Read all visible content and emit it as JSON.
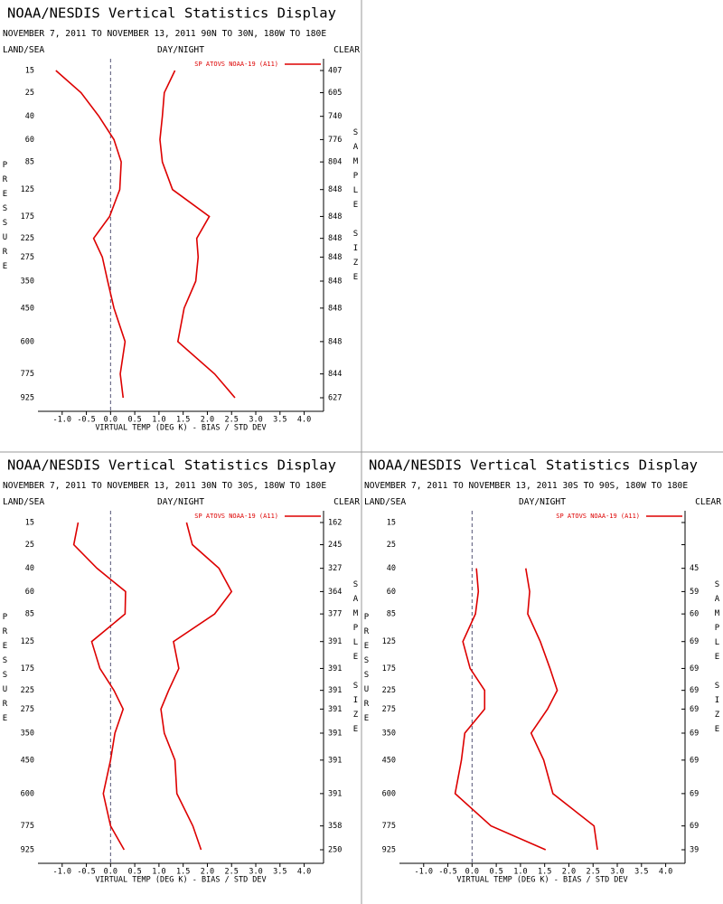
{
  "chart_data": [
    {
      "type": "line",
      "title": "NOAA/NESDIS Vertical Statistics Display",
      "subtitle": "NOVEMBER 7, 2011 TO NOVEMBER 13, 2011 90N TO 30N, 180W TO 180E",
      "labels": {
        "left": "LAND/SEA",
        "center": "DAY/NIGHT",
        "right": "CLEAR"
      },
      "xlabel": "VIRTUAL TEMP (DEG K) - BIAS / STD DEV",
      "ylabel": "PRESSURE",
      "y2label": "SAMPLE SIZE",
      "levels": [
        15,
        25,
        40,
        60,
        85,
        125,
        175,
        225,
        275,
        350,
        450,
        600,
        775,
        925
      ],
      "sample_size": [
        407,
        605,
        740,
        776,
        804,
        848,
        848,
        848,
        848,
        848,
        848,
        848,
        844,
        627
      ],
      "series": [
        {
          "name": "SP ATOVS NOAA-19 (A11)",
          "color": "#dd0000",
          "values": [
            -1.13,
            -0.61,
            -0.24,
            0.07,
            0.22,
            0.19,
            -0.02,
            -0.35,
            -0.17,
            -0.06,
            0.07,
            0.3,
            0.2,
            0.26
          ]
        },
        {
          "color": "#dd0000",
          "values": [
            1.33,
            1.11,
            1.07,
            1.02,
            1.07,
            1.28,
            2.04,
            1.78,
            1.81,
            1.76,
            1.52,
            1.39,
            2.15,
            2.57
          ]
        }
      ],
      "xlim": [
        -1.5,
        4.4
      ],
      "xticks": [
        {
          "value": -1,
          "label": "-1.0"
        },
        -0.5,
        {
          "value": 0,
          "label": "0.0"
        },
        0.5,
        {
          "value": 1,
          "label": "1.0"
        },
        1.5,
        {
          "value": 2,
          "label": "2.0"
        },
        2.5,
        {
          "value": 3,
          "label": "3.0"
        },
        3.5,
        {
          "value": 4,
          "label": "4.0"
        }
      ],
      "ylim": [
        15,
        925
      ],
      "zero_line": true
    },
    {
      "type": "line",
      "title": "NOAA/NESDIS Vertical Statistics Display",
      "subtitle": "NOVEMBER 7, 2011 TO NOVEMBER 13, 2011 30N TO 30S, 180W TO 180E",
      "labels": {
        "left": "LAND/SEA",
        "center": "DAY/NIGHT",
        "right": "CLEAR"
      },
      "xlabel": "VIRTUAL TEMP (DEG K) - BIAS / STD DEV",
      "ylabel": "PRESSURE",
      "y2label": "SAMPLE SIZE",
      "levels": [
        15,
        25,
        40,
        60,
        85,
        125,
        175,
        225,
        275,
        350,
        450,
        600,
        775,
        925
      ],
      "sample_size": [
        162,
        245,
        327,
        364,
        377,
        391,
        391,
        391,
        391,
        391,
        391,
        391,
        358,
        250
      ],
      "series": [
        {
          "name": "SP ATOVS NOAA-19 (A11)",
          "color": "#dd0000",
          "values": [
            -0.67,
            -0.76,
            -0.28,
            0.31,
            0.3,
            -0.39,
            -0.22,
            0.07,
            0.26,
            0.09,
            0.0,
            -0.15,
            0.0,
            0.28
          ]
        },
        {
          "color": "#dd0000",
          "values": [
            1.57,
            1.69,
            2.24,
            2.5,
            2.15,
            1.3,
            1.41,
            1.2,
            1.04,
            1.11,
            1.33,
            1.37,
            1.7,
            1.87
          ]
        }
      ],
      "xlim": [
        -1.5,
        4.4
      ],
      "xticks": [
        {
          "value": -1,
          "label": "-1.0"
        },
        -0.5,
        {
          "value": 0,
          "label": "0.0"
        },
        0.5,
        {
          "value": 1,
          "label": "1.0"
        },
        1.5,
        {
          "value": 2,
          "label": "2.0"
        },
        2.5,
        {
          "value": 3,
          "label": "3.0"
        },
        3.5,
        {
          "value": 4,
          "label": "4.0"
        }
      ],
      "ylim": [
        15,
        925
      ],
      "zero_line": true
    },
    {
      "type": "line",
      "title": "NOAA/NESDIS Vertical Statistics Display",
      "subtitle": "NOVEMBER 7, 2011 TO NOVEMBER 13, 2011 30S TO 90S, 180W TO 180E",
      "labels": {
        "left": "LAND/SEA",
        "center": "DAY/NIGHT",
        "right": "CLEAR"
      },
      "xlabel": "VIRTUAL TEMP (DEG K) - BIAS / STD DEV",
      "ylabel": "PRESSURE",
      "y2label": "SAMPLE SIZE",
      "levels": [
        15,
        25,
        40,
        60,
        85,
        125,
        175,
        225,
        275,
        350,
        450,
        600,
        775,
        925
      ],
      "sample_size": [
        null,
        null,
        45,
        59,
        60,
        69,
        69,
        69,
        69,
        69,
        69,
        69,
        69,
        39
      ],
      "series": [
        {
          "name": "SP ATOVS NOAA-19 (A11)",
          "color": "#dd0000",
          "values": [
            null,
            null,
            0.09,
            0.13,
            0.07,
            -0.19,
            -0.04,
            0.26,
            0.26,
            -0.15,
            -0.22,
            -0.35,
            0.39,
            1.52
          ]
        },
        {
          "color": "#dd0000",
          "values": [
            null,
            null,
            1.11,
            1.19,
            1.15,
            1.41,
            1.61,
            1.76,
            1.56,
            1.22,
            1.48,
            1.67,
            2.52,
            2.59
          ]
        }
      ],
      "xlim": [
        -1.5,
        4.4
      ],
      "xticks": [
        {
          "value": -1,
          "label": "-1.0"
        },
        -0.5,
        {
          "value": 0,
          "label": "0.0"
        },
        0.5,
        {
          "value": 1,
          "label": "1.0"
        },
        1.5,
        {
          "value": 2,
          "label": "2.0"
        },
        2.5,
        {
          "value": 3,
          "label": "3.0"
        },
        3.5,
        {
          "value": 4,
          "label": "4.0"
        }
      ],
      "ylim": [
        15,
        925
      ],
      "zero_line": true
    }
  ]
}
